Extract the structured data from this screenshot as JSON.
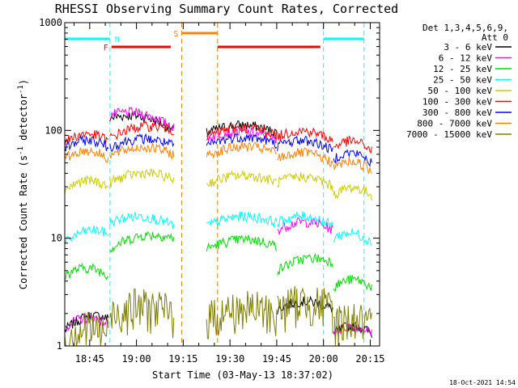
{
  "chart_data": {
    "type": "line",
    "title": "RHESSI Observing Summary Count Rates, Corrected",
    "xlabel": "Start Time (03-May-13 18:37:02)",
    "ylabel_parts": {
      "pre": "Corrected Count Rate (s",
      "exp1": "-1",
      "mid": " detector",
      "exp2": "-1",
      "post": ")"
    },
    "yscale": "log",
    "ylim": [
      1,
      1000
    ],
    "xlim_minutes": [
      37.0,
      138.0
    ],
    "x_tick_values": [
      45,
      60,
      75,
      90,
      105,
      120,
      135
    ],
    "x_tick_labels": [
      "18:45",
      "19:00",
      "19:15",
      "19:30",
      "19:45",
      "20:00",
      "20:15"
    ],
    "y_tick_values": [
      1,
      10,
      100,
      1000
    ],
    "y_tick_labels": [
      "1",
      "10",
      "100",
      "1000"
    ],
    "legend_header": [
      "Det 1,3,4,5,6,9,",
      "Att 0"
    ],
    "series": [
      {
        "name": "3 - 6 keV",
        "color": "#000000"
      },
      {
        "name": "6 - 12 keV",
        "color": "#ff00ff"
      },
      {
        "name": "12 - 25 keV",
        "color": "#00dd00"
      },
      {
        "name": "25 - 50 keV",
        "color": "#00ffff"
      },
      {
        "name": "50 - 100 keV",
        "color": "#cccc00"
      },
      {
        "name": "100 - 300 keV",
        "color": "#ff0000"
      },
      {
        "name": "300 - 800 keV",
        "color": "#0000ff"
      },
      {
        "name": "800 - 7000 keV",
        "color": "#ff8000"
      },
      {
        "name": "7000 - 15000 keV",
        "color": "#808000"
      }
    ],
    "data_segments": [
      [
        37.0,
        51.0
      ],
      [
        51.5,
        72.0
      ],
      [
        82.5,
        105.0
      ],
      [
        105.2,
        123.0
      ],
      [
        123.2,
        135.5
      ]
    ],
    "levels": {
      "3 - 6 keV": [
        [
          1.4,
          1.8
        ],
        [
          130,
          100
        ],
        [
          95,
          95
        ],
        [
          2.2,
          2.2
        ],
        [
          1.3,
          1.3
        ]
      ],
      "6 - 12 keV": [
        [
          1.5,
          1.6
        ],
        [
          140,
          105
        ],
        [
          85,
          80
        ],
        [
          12,
          12
        ],
        [
          1.3,
          1.3
        ]
      ],
      "12 - 25 keV": [
        [
          4.5,
          4.5
        ],
        [
          8,
          10
        ],
        [
          8,
          8.5
        ],
        [
          5,
          6
        ],
        [
          3.5,
          3.5
        ]
      ],
      "25 - 50 keV": [
        [
          9,
          11
        ],
        [
          14,
          13
        ],
        [
          13,
          14
        ],
        [
          14,
          13
        ],
        [
          10,
          9
        ]
      ],
      "50 - 100 keV": [
        [
          28,
          30
        ],
        [
          33,
          35
        ],
        [
          32,
          33
        ],
        [
          33,
          30
        ],
        [
          25,
          25
        ]
      ],
      "100 - 300 keV": [
        [
          78,
          80
        ],
        [
          85,
          100
        ],
        [
          88,
          92
        ],
        [
          88,
          80
        ],
        [
          70,
          65
        ]
      ],
      "300 - 800 keV": [
        [
          68,
          70
        ],
        [
          70,
          72
        ],
        [
          72,
          75
        ],
        [
          72,
          65
        ],
        [
          55,
          50
        ]
      ],
      "800 - 7000 keV": [
        [
          55,
          55
        ],
        [
          58,
          60
        ],
        [
          58,
          62
        ],
        [
          55,
          50
        ],
        [
          45,
          42
        ]
      ],
      "7000 - 15000 keV": [
        [
          1.2,
          1.3
        ],
        [
          2.0,
          2.0
        ],
        [
          1.8,
          2.0
        ],
        [
          2.2,
          2.2
        ],
        [
          1.6,
          1.5
        ]
      ]
    },
    "flags": [
      {
        "label": "N",
        "color": "#00ffff",
        "row": 1,
        "intervals": [
          [
            37.0,
            51.5
          ],
          [
            120.0,
            133.0
          ]
        ],
        "edges": [
          51.5,
          120.0,
          133.0
        ]
      },
      {
        "label": "F",
        "color": "#ff0000",
        "row": 2,
        "intervals": [
          [
            52.0,
            71.0
          ],
          [
            86.0,
            119.0
          ]
        ],
        "edges": []
      },
      {
        "label": "S",
        "color": "#ff8000",
        "row": 0,
        "intervals": [
          [
            74.5,
            86.0
          ]
        ],
        "edges": [
          74.5,
          86.0
        ]
      }
    ],
    "datestamp": "18-Oct-2021 14:54"
  }
}
